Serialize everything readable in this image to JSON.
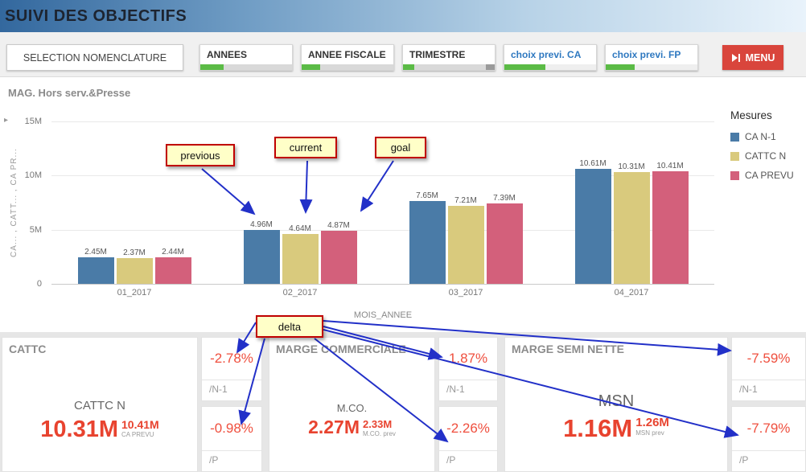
{
  "header": {
    "title": "SUIVI DES OBJECTIFS"
  },
  "toolbar": {
    "selection_button": "SELECTION NOMENCLATURE",
    "menu_label": "MENU",
    "filters": [
      {
        "label": "ANNEES",
        "accent": false,
        "segments": [
          {
            "color": "#5bbb46",
            "ratio": 0.25
          },
          {
            "color": "#d9d9d9",
            "ratio": 0.75
          }
        ]
      },
      {
        "label": "ANNEE FISCALE",
        "accent": false,
        "segments": [
          {
            "color": "#5bbb46",
            "ratio": 0.2
          },
          {
            "color": "#d9d9d9",
            "ratio": 0.8
          }
        ]
      },
      {
        "label": "TRIMESTRE",
        "accent": false,
        "segments": [
          {
            "color": "#5bbb46",
            "ratio": 0.12
          },
          {
            "color": "#d9d9d9",
            "ratio": 0.78
          },
          {
            "color": "#9a9a9a",
            "ratio": 0.1
          }
        ]
      },
      {
        "label": "choix previ. CA",
        "accent": true,
        "segments": [
          {
            "color": "#5bbb46",
            "ratio": 0.45
          },
          {
            "color": "#efefef",
            "ratio": 0.55
          }
        ]
      },
      {
        "label": "choix previ. FP",
        "accent": true,
        "segments": [
          {
            "color": "#5bbb46",
            "ratio": 0.32
          },
          {
            "color": "#efefef",
            "ratio": 0.68
          }
        ]
      }
    ]
  },
  "chart_data": {
    "type": "bar",
    "title": "MAG. Hors serv.&Presse",
    "categories": [
      "01_2017",
      "02_2017",
      "03_2017",
      "04_2017"
    ],
    "series": [
      {
        "name": "CA N-1",
        "color": "#4a7ba7",
        "values": [
          2.45,
          4.96,
          7.65,
          10.61
        ]
      },
      {
        "name": "CATTC N",
        "color": "#d9ca7d",
        "values": [
          2.37,
          4.64,
          7.21,
          10.31
        ]
      },
      {
        "name": "CA PREVU",
        "color": "#d3607b",
        "values": [
          2.44,
          4.87,
          7.39,
          10.41
        ]
      }
    ],
    "xlabel": "MOIS_ANNEE",
    "ylabel": "CA... , CATT... , CA PR...",
    "ylim": [
      0,
      15
    ],
    "y_ticks": [
      0,
      5,
      10,
      15
    ],
    "y_tick_labels": [
      "0",
      "5M",
      "10M",
      "15M"
    ],
    "unit": "M",
    "grid": true,
    "legend_title": "Mesures",
    "legend_position": "right"
  },
  "annotations": {
    "previous": "previous",
    "current": "current",
    "goal": "goal",
    "delta": "delta"
  },
  "kpis": [
    {
      "title": "CATTC",
      "label": "CATTC N",
      "value": "10.31M",
      "secondary_value": "10.41M",
      "secondary_label": "CA PREVU",
      "deltas": [
        {
          "value": "-2.78%",
          "ref": "/N-1"
        },
        {
          "value": "-0.98%",
          "ref": "/P"
        }
      ]
    },
    {
      "title": "MARGE COMMERCIALE",
      "label": "M.CO.",
      "value": "2.27M",
      "secondary_value": "2.33M",
      "secondary_label": "M.CO. prev",
      "deltas": [
        {
          "value": "1.87%",
          "ref": "/N-1"
        },
        {
          "value": "-2.26%",
          "ref": "/P"
        }
      ]
    },
    {
      "title": "MARGE SEMI NETTE",
      "label": "MSN",
      "value": "1.16M",
      "secondary_value": "1.26M",
      "secondary_label": "MSN prev",
      "deltas": [
        {
          "value": "-7.59%",
          "ref": "/N-1"
        },
        {
          "value": "-7.79%",
          "ref": "/P"
        }
      ]
    }
  ],
  "colors": {
    "menu_button": "#d9453c",
    "filter_selected_green": "#5bbb46",
    "accent_blue": "#2e78c0",
    "kpi_value_red": "#e8432f",
    "delta_red": "#ef4f3e",
    "callout_bg": "#ffffc8",
    "callout_border": "#c00000",
    "arrow_blue": "#2230c8",
    "header_gradient_start": "#33689e",
    "header_gradient_end": "#e9f3fb"
  }
}
